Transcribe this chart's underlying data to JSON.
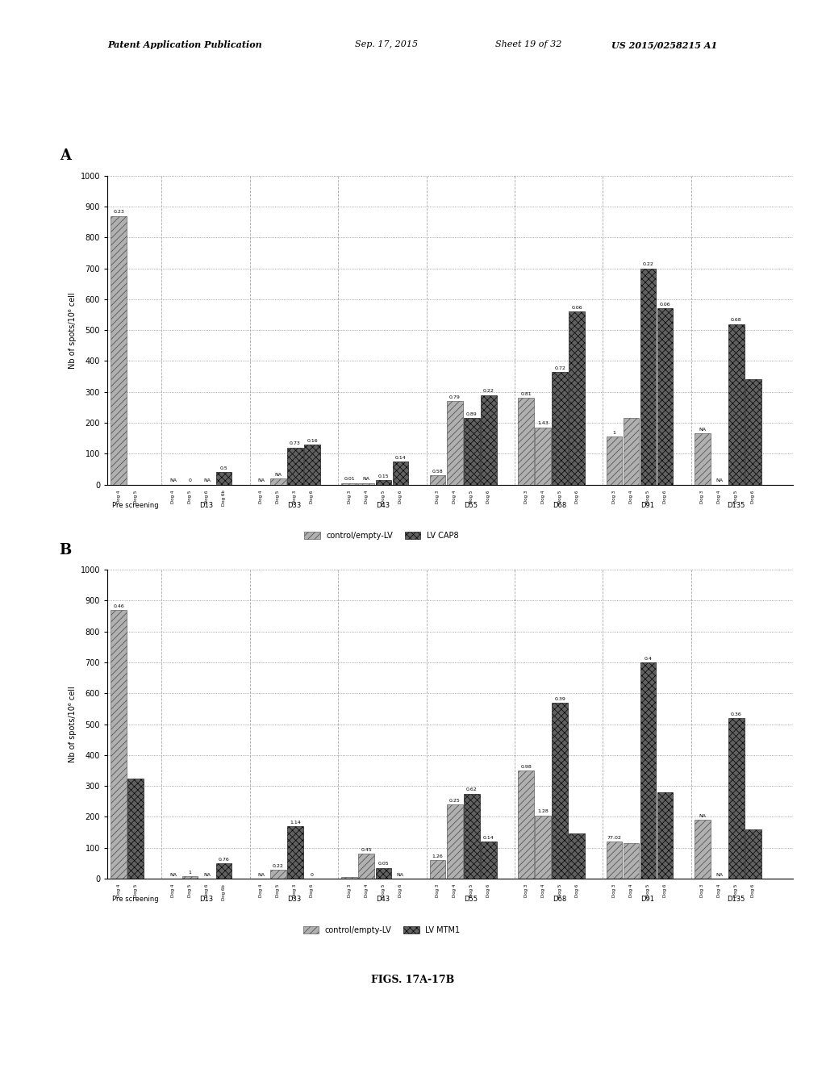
{
  "chart_A": {
    "title_label": "A",
    "ylabel": "Nb of spots/10⁶ cell",
    "ylim": [
      0,
      1000
    ],
    "yticks": [
      0,
      100,
      200,
      300,
      400,
      500,
      600,
      700,
      800,
      900,
      1000
    ],
    "legend": [
      "control/empty-LV",
      "LV CAP8"
    ],
    "groups": [
      "Pre screening",
      "D13",
      "D33",
      "D43",
      "D55",
      "D68",
      "D91",
      "D135"
    ],
    "bars": [
      {
        "group": "Pre screening",
        "dog": "Dog 4",
        "type": "control",
        "value": 870,
        "label": "0.23"
      },
      {
        "group": "Pre screening",
        "dog": "Dog 5",
        "type": "treatment",
        "value": 0,
        "label": ""
      },
      {
        "group": "D13",
        "dog": "Dog 4",
        "type": "control",
        "value": 0,
        "label": "NA"
      },
      {
        "group": "D13",
        "dog": "Dog 5",
        "type": "control",
        "value": 0,
        "label": "0"
      },
      {
        "group": "D13",
        "dog": "Dog 6",
        "type": "treatment",
        "value": 0,
        "label": "NA"
      },
      {
        "group": "D13",
        "dog": "Dog 6b",
        "type": "treatment",
        "value": 40,
        "label": "0.5"
      },
      {
        "group": "D33",
        "dog": "Dog 4",
        "type": "control",
        "value": 0,
        "label": "NA"
      },
      {
        "group": "D33",
        "dog": "Dog 5",
        "type": "control",
        "value": 20,
        "label": "NA"
      },
      {
        "group": "D33",
        "dog": "Dog 3",
        "type": "treatment",
        "value": 120,
        "label": "0.73"
      },
      {
        "group": "D33",
        "dog": "Dog 6",
        "type": "treatment",
        "value": 130,
        "label": "0.16"
      },
      {
        "group": "D43",
        "dog": "Dog 3",
        "type": "control",
        "value": 5,
        "label": "0.01"
      },
      {
        "group": "D43",
        "dog": "Dog 4",
        "type": "control",
        "value": 5,
        "label": "NA"
      },
      {
        "group": "D43",
        "dog": "Dog 5",
        "type": "treatment",
        "value": 15,
        "label": "0.15"
      },
      {
        "group": "D43",
        "dog": "Dog 6",
        "type": "treatment",
        "value": 75,
        "label": "0.14"
      },
      {
        "group": "D55",
        "dog": "Dog 3",
        "type": "control",
        "value": 30,
        "label": "0.58"
      },
      {
        "group": "D55",
        "dog": "Dog 4",
        "type": "control",
        "value": 270,
        "label": "0.79"
      },
      {
        "group": "D55",
        "dog": "Dog 5",
        "type": "treatment",
        "value": 215,
        "label": "0.89"
      },
      {
        "group": "D55",
        "dog": "Dog 6",
        "type": "treatment",
        "value": 290,
        "label": "0.22"
      },
      {
        "group": "D68",
        "dog": "Dog 3",
        "type": "control",
        "value": 280,
        "label": "0.81"
      },
      {
        "group": "D68",
        "dog": "Dog 4",
        "type": "control",
        "value": 185,
        "label": "1.43"
      },
      {
        "group": "D68",
        "dog": "Dog 5",
        "type": "treatment",
        "value": 365,
        "label": "0.72"
      },
      {
        "group": "D68",
        "dog": "Dog 6",
        "type": "treatment",
        "value": 560,
        "label": "0.06"
      },
      {
        "group": "D91",
        "dog": "Dog 3",
        "type": "control",
        "value": 155,
        "label": "1"
      },
      {
        "group": "D91",
        "dog": "Dog 4",
        "type": "control",
        "value": 215,
        "label": ""
      },
      {
        "group": "D91",
        "dog": "Dog 5",
        "type": "treatment",
        "value": 700,
        "label": "0.22"
      },
      {
        "group": "D91",
        "dog": "Dog 6",
        "type": "treatment",
        "value": 570,
        "label": "0.06"
      },
      {
        "group": "D135",
        "dog": "Dog 3",
        "type": "control",
        "value": 165,
        "label": "NA"
      },
      {
        "group": "D135",
        "dog": "Dog 4",
        "type": "control",
        "value": 0,
        "label": "NA"
      },
      {
        "group": "D135",
        "dog": "Dog 5",
        "type": "treatment",
        "value": 520,
        "label": "0.68"
      },
      {
        "group": "D135",
        "dog": "Dog 6",
        "type": "treatment",
        "value": 340,
        "label": ""
      }
    ]
  },
  "chart_B": {
    "title_label": "B",
    "ylabel": "Nb of spots/10⁶ cell",
    "ylim": [
      0,
      1000
    ],
    "yticks": [
      0,
      100,
      200,
      300,
      400,
      500,
      600,
      700,
      800,
      900,
      1000
    ],
    "legend": [
      "control/empty-LV",
      "LV MTM1"
    ],
    "groups": [
      "Pre screening",
      "D13",
      "D33",
      "D43",
      "D55",
      "D68",
      "D91",
      "D135"
    ],
    "bars": [
      {
        "group": "Pre screening",
        "dog": "Dog 4",
        "type": "control",
        "value": 870,
        "label": "0.46"
      },
      {
        "group": "Pre screening",
        "dog": "Dog 5",
        "type": "treatment",
        "value": 325,
        "label": ""
      },
      {
        "group": "D13",
        "dog": "Dog 4",
        "type": "control",
        "value": 0,
        "label": "NA"
      },
      {
        "group": "D13",
        "dog": "Dog 5",
        "type": "control",
        "value": 8,
        "label": "1"
      },
      {
        "group": "D13",
        "dog": "Dog 6",
        "type": "treatment",
        "value": 0,
        "label": "NA"
      },
      {
        "group": "D13",
        "dog": "Dog 6b",
        "type": "treatment",
        "value": 50,
        "label": "0.76"
      },
      {
        "group": "D33",
        "dog": "Dog 4",
        "type": "control",
        "value": 0,
        "label": "NA"
      },
      {
        "group": "D33",
        "dog": "Dog 5",
        "type": "control",
        "value": 28,
        "label": "0.22"
      },
      {
        "group": "D33",
        "dog": "Dog 3",
        "type": "treatment",
        "value": 170,
        "label": "1.14"
      },
      {
        "group": "D33",
        "dog": "Dog 6",
        "type": "treatment",
        "value": 0,
        "label": "0"
      },
      {
        "group": "D43",
        "dog": "Dog 3",
        "type": "control",
        "value": 5,
        "label": ""
      },
      {
        "group": "D43",
        "dog": "Dog 4",
        "type": "control",
        "value": 80,
        "label": "0.45"
      },
      {
        "group": "D43",
        "dog": "Dog 5",
        "type": "treatment",
        "value": 35,
        "label": "0.05"
      },
      {
        "group": "D43",
        "dog": "Dog 6",
        "type": "treatment",
        "value": 0,
        "label": "NA"
      },
      {
        "group": "D55",
        "dog": "Dog 3",
        "type": "control",
        "value": 60,
        "label": "1.26"
      },
      {
        "group": "D55",
        "dog": "Dog 4",
        "type": "control",
        "value": 240,
        "label": "0.25"
      },
      {
        "group": "D55",
        "dog": "Dog 5",
        "type": "treatment",
        "value": 275,
        "label": "0.62"
      },
      {
        "group": "D55",
        "dog": "Dog 6",
        "type": "treatment",
        "value": 120,
        "label": "0.14"
      },
      {
        "group": "D68",
        "dog": "Dog 3",
        "type": "control",
        "value": 350,
        "label": "0.98"
      },
      {
        "group": "D68",
        "dog": "Dog 4",
        "type": "control",
        "value": 205,
        "label": "1.28"
      },
      {
        "group": "D68",
        "dog": "Dog 5",
        "type": "treatment",
        "value": 570,
        "label": "0.39"
      },
      {
        "group": "D68",
        "dog": "Dog 6",
        "type": "treatment",
        "value": 145,
        "label": ""
      },
      {
        "group": "D91",
        "dog": "Dog 3",
        "type": "control",
        "value": 120,
        "label": "77.02"
      },
      {
        "group": "D91",
        "dog": "Dog 4",
        "type": "control",
        "value": 115,
        "label": ""
      },
      {
        "group": "D91",
        "dog": "Dog 5",
        "type": "treatment",
        "value": 700,
        "label": "0.4"
      },
      {
        "group": "D91",
        "dog": "Dog 6",
        "type": "treatment",
        "value": 280,
        "label": ""
      },
      {
        "group": "D135",
        "dog": "Dog 3",
        "type": "control",
        "value": 190,
        "label": "NA"
      },
      {
        "group": "D135",
        "dog": "Dog 4",
        "type": "control",
        "value": 0,
        "label": "NA"
      },
      {
        "group": "D135",
        "dog": "Dog 5",
        "type": "treatment",
        "value": 520,
        "label": "0.36"
      },
      {
        "group": "D135",
        "dog": "Dog 6",
        "type": "treatment",
        "value": 160,
        "label": ""
      }
    ]
  },
  "figure_label": "FIGS. 17A-17B",
  "header_line1": "Patent Application Publication",
  "header_line2": "Sep. 17, 2015",
  "header_line3": "Sheet 19 of 32",
  "header_line4": "US 2015/0258215 A1",
  "background_color": "#ffffff"
}
